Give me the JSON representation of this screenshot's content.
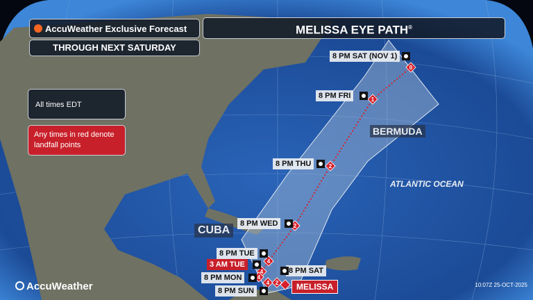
{
  "header": {
    "brand_label": "AccuWeather Exclusive Forecast",
    "subtitle": "THROUGH NEXT SATURDAY",
    "title": "MELISSA EYE PATH",
    "title_mark": "®"
  },
  "notes": {
    "times": "All times EDT",
    "red_note": "Any times in red denote landfall points"
  },
  "places": {
    "bermuda": "BERMUDA",
    "atlantic": "ATLANTIC OCEAN",
    "cuba": "CUBA"
  },
  "storm_label": "MELISSA",
  "track_labels": [
    {
      "text": "8 PM SAT (NOV 1)",
      "landfall": false
    },
    {
      "text": "8 PM FRI",
      "landfall": false
    },
    {
      "text": "8 PM THU",
      "landfall": false
    },
    {
      "text": "8 PM WED",
      "landfall": false
    },
    {
      "text": "8 PM TUE",
      "landfall": false
    },
    {
      "text": "3 AM TUE",
      "landfall": true
    },
    {
      "text": "8 PM MON",
      "landfall": false
    },
    {
      "text": "8 PM SUN",
      "landfall": false
    },
    {
      "text": "8 PM SAT",
      "landfall": false
    }
  ],
  "track_points": [
    "0",
    "1",
    "2",
    "2",
    "4",
    "4",
    "4",
    "4",
    "2",
    ""
  ],
  "footer": {
    "logo": "AccuWeather",
    "timestamp": "10:07Z 25-OCT-2025"
  },
  "colors": {
    "ocean": "#1d4f9c",
    "land": "#6f7163",
    "cone": "#a9bfd8",
    "track": "#d8202a",
    "landfall": "#c8202a"
  }
}
